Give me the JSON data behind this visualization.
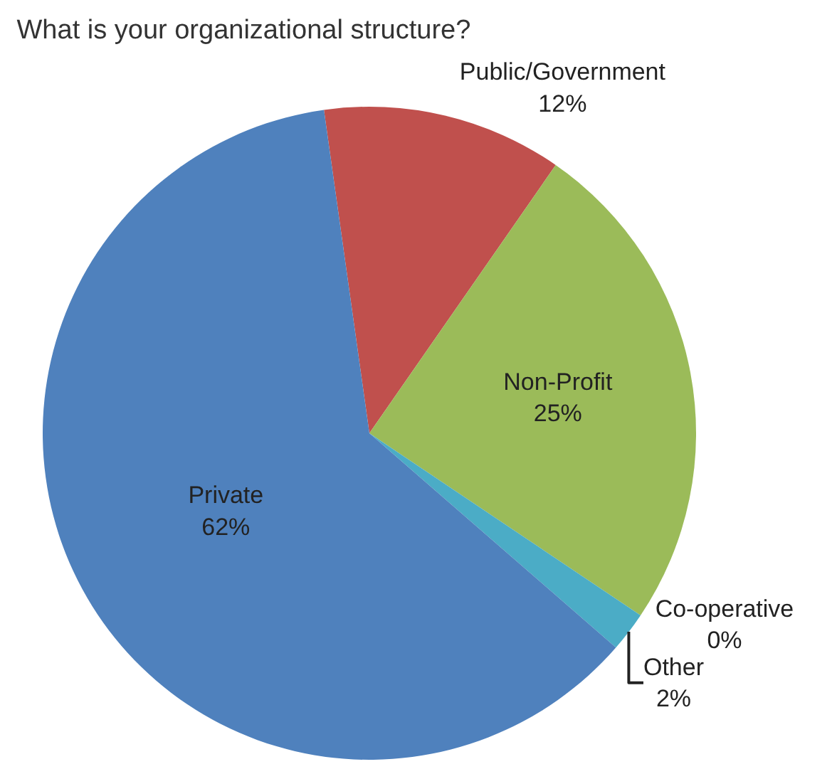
{
  "chart_data": {
    "type": "pie",
    "title": "What is your organizational structure?",
    "categories": [
      "Public/Government",
      "Non-Profit",
      "Co-operative",
      "Other",
      "Private"
    ],
    "values": [
      12,
      25,
      0,
      2,
      62
    ],
    "colors": [
      "#c0504d",
      "#9bbb59",
      "#8064a2",
      "#4bacc6",
      "#4f81bd"
    ],
    "value_labels": [
      "12%",
      "25%",
      "0%",
      "2%",
      "62%"
    ],
    "legend": false
  }
}
